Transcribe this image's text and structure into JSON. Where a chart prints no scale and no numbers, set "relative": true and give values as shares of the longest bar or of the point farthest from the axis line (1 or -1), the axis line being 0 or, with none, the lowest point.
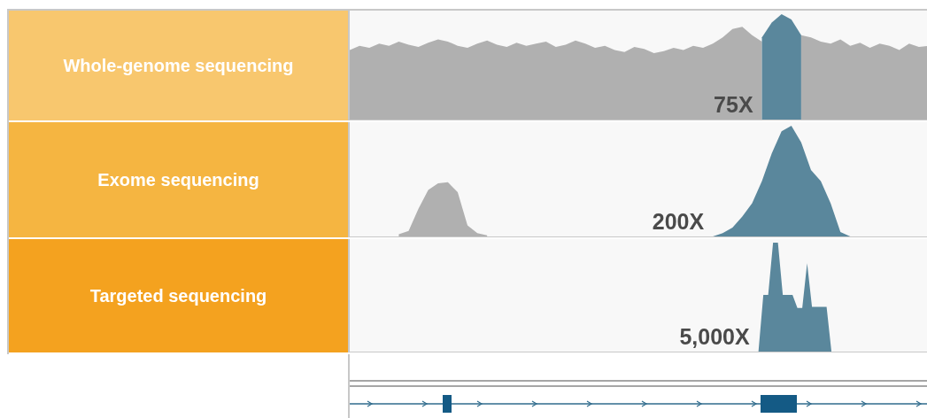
{
  "chart_data": [
    {
      "type": "area",
      "title": "Whole-genome sequencing",
      "relative": true,
      "annotations": [
        "75X"
      ],
      "categories": [
        null,
        null,
        null,
        null,
        null,
        null,
        null,
        null,
        null,
        null,
        null,
        null,
        null,
        null,
        null,
        null,
        null,
        null,
        null,
        null,
        null,
        null,
        null,
        null,
        null,
        null,
        null,
        null,
        null,
        null,
        null,
        null,
        null,
        null,
        null,
        null,
        null,
        null,
        null,
        null,
        null,
        null,
        null,
        null,
        null,
        null,
        null,
        null,
        null,
        null,
        null,
        null,
        null,
        null,
        null,
        null,
        null,
        null,
        null,
        null
      ],
      "series": [
        {
          "color": "#b0b0b0",
          "values": [
            0.66,
            0.7,
            0.68,
            0.72,
            0.7,
            0.74,
            0.71,
            0.69,
            0.73,
            0.76,
            0.74,
            0.7,
            0.68,
            0.72,
            0.75,
            0.71,
            0.69,
            0.73,
            0.7,
            0.72,
            0.74,
            0.69,
            0.71,
            0.75,
            0.72,
            0.68,
            0.7,
            0.66,
            0.64,
            0.69,
            0.67,
            0.63,
            0.65,
            0.68,
            0.66,
            0.7,
            0.68,
            0.72,
            0.78,
            0.86,
            0.88,
            0.8,
            0.74,
            null,
            null,
            null,
            null,
            null,
            null,
            null,
            null,
            null,
            null,
            null,
            null,
            null,
            null,
            null,
            null,
            null
          ]
        },
        {
          "color": "#b0b0b0",
          "values": [
            null,
            null,
            null,
            null,
            null,
            null,
            null,
            null,
            null,
            null,
            null,
            null,
            null,
            null,
            null,
            null,
            null,
            null,
            null,
            null,
            null,
            null,
            null,
            null,
            null,
            null,
            null,
            null,
            null,
            null,
            null,
            null,
            null,
            null,
            null,
            null,
            null,
            null,
            null,
            null,
            null,
            null,
            null,
            null,
            null,
            null,
            0.8,
            0.78,
            0.74,
            0.72,
            0.76,
            0.7,
            0.73,
            0.68,
            0.72,
            0.7,
            0.66,
            0.72,
            0.69,
            0.7
          ]
        },
        {
          "color": "#5a879c",
          "values": [
            null,
            null,
            null,
            null,
            null,
            null,
            null,
            null,
            null,
            null,
            null,
            null,
            null,
            null,
            null,
            null,
            null,
            null,
            null,
            null,
            null,
            null,
            null,
            null,
            null,
            null,
            null,
            null,
            null,
            null,
            null,
            null,
            null,
            null,
            null,
            null,
            null,
            null,
            null,
            null,
            null,
            null,
            0.78,
            0.92,
            1.0,
            0.95,
            0.8,
            null,
            null,
            null,
            null,
            null,
            null,
            null,
            null,
            null,
            null,
            null,
            null,
            null
          ]
        }
      ]
    },
    {
      "type": "area",
      "title": "Exome sequencing",
      "relative": true,
      "annotations": [
        "200X"
      ],
      "categories": [
        null,
        null,
        null,
        null,
        null,
        null,
        null,
        null,
        null,
        null,
        null,
        null,
        null,
        null,
        null,
        null,
        null,
        null,
        null,
        null,
        null,
        null,
        null,
        null,
        null,
        null,
        null,
        null,
        null,
        null,
        null,
        null,
        null,
        null,
        null,
        null,
        null,
        null,
        null,
        null,
        null,
        null,
        null,
        null,
        null,
        null,
        null,
        null,
        null,
        null,
        null,
        null,
        null,
        null,
        null,
        null,
        null,
        null,
        null,
        null
      ],
      "series": [
        {
          "color": "#b0b0b0",
          "values": [
            null,
            null,
            null,
            null,
            null,
            0.02,
            0.05,
            0.25,
            0.42,
            0.48,
            0.49,
            0.4,
            0.1,
            0.03,
            0.01,
            null,
            null,
            null,
            null,
            null,
            null,
            null,
            null,
            null,
            null,
            null,
            null,
            null,
            null,
            null,
            null,
            null,
            null,
            null,
            null,
            null,
            null,
            null,
            null,
            null,
            null,
            null,
            null,
            null,
            null,
            null,
            null,
            null,
            null,
            null,
            null,
            null,
            null,
            null,
            null,
            null,
            null,
            null,
            null,
            null
          ]
        },
        {
          "color": "#5a879c",
          "values": [
            null,
            null,
            null,
            null,
            null,
            null,
            null,
            null,
            null,
            null,
            null,
            null,
            null,
            null,
            null,
            null,
            null,
            null,
            null,
            null,
            null,
            null,
            null,
            null,
            null,
            null,
            null,
            null,
            null,
            null,
            null,
            null,
            null,
            null,
            null,
            null,
            null,
            0.0,
            0.03,
            0.08,
            0.18,
            0.3,
            0.5,
            0.75,
            0.95,
            1.0,
            0.85,
            0.6,
            0.5,
            0.3,
            0.04,
            0.0,
            null,
            null,
            null,
            null,
            null,
            null,
            null,
            null
          ]
        }
      ]
    },
    {
      "type": "area",
      "title": "Targeted sequencing",
      "relative": true,
      "annotations": [
        "5,000X"
      ],
      "categories": [
        null,
        null,
        null,
        null,
        null,
        null,
        null,
        null,
        null,
        null,
        null,
        null,
        null,
        null,
        null,
        null,
        null,
        null,
        null,
        null,
        null,
        null,
        null,
        null,
        null,
        null,
        null,
        null,
        null,
        null,
        null,
        null,
        null,
        null,
        null,
        null,
        null,
        null,
        null,
        null,
        null,
        null,
        null,
        null,
        null,
        null,
        null,
        null,
        null,
        null,
        null,
        null,
        null,
        null,
        null,
        null,
        null,
        null,
        null,
        null,
        null,
        null,
        null,
        null,
        null,
        null,
        null,
        null,
        null,
        null,
        null,
        null,
        null,
        null,
        null,
        null,
        null,
        null,
        null,
        null,
        null,
        null,
        null,
        null,
        null,
        null,
        null,
        null,
        null,
        null,
        null,
        null,
        null,
        null,
        null,
        null,
        null,
        null,
        null,
        null,
        null,
        null,
        null,
        null,
        null,
        null,
        null,
        null,
        null,
        null,
        null,
        null,
        null,
        null,
        null,
        null,
        null,
        null,
        null,
        null
      ],
      "series": [
        {
          "color": "#5a879c",
          "values": [
            null,
            null,
            null,
            null,
            null,
            null,
            null,
            null,
            null,
            null,
            null,
            null,
            null,
            null,
            null,
            null,
            null,
            null,
            null,
            null,
            null,
            null,
            null,
            null,
            null,
            null,
            null,
            null,
            null,
            null,
            null,
            null,
            null,
            null,
            null,
            null,
            null,
            null,
            null,
            null,
            null,
            null,
            null,
            null,
            null,
            null,
            null,
            null,
            null,
            null,
            null,
            null,
            null,
            null,
            null,
            null,
            null,
            null,
            null,
            null,
            null,
            null,
            null,
            null,
            null,
            null,
            null,
            null,
            null,
            null,
            null,
            null,
            null,
            null,
            null,
            null,
            null,
            null,
            null,
            null,
            null,
            null,
            null,
            null,
            0.0,
            0.52,
            0.52,
            1.0,
            1.0,
            0.52,
            0.52,
            0.52,
            0.4,
            0.4,
            0.81,
            0.41,
            0.41,
            0.41,
            0.41,
            0.0,
            null,
            null,
            null,
            null,
            null,
            null,
            null,
            null,
            null,
            null,
            null,
            null,
            null,
            null,
            null,
            null,
            null,
            null,
            null,
            null
          ]
        }
      ]
    }
  ]
}
